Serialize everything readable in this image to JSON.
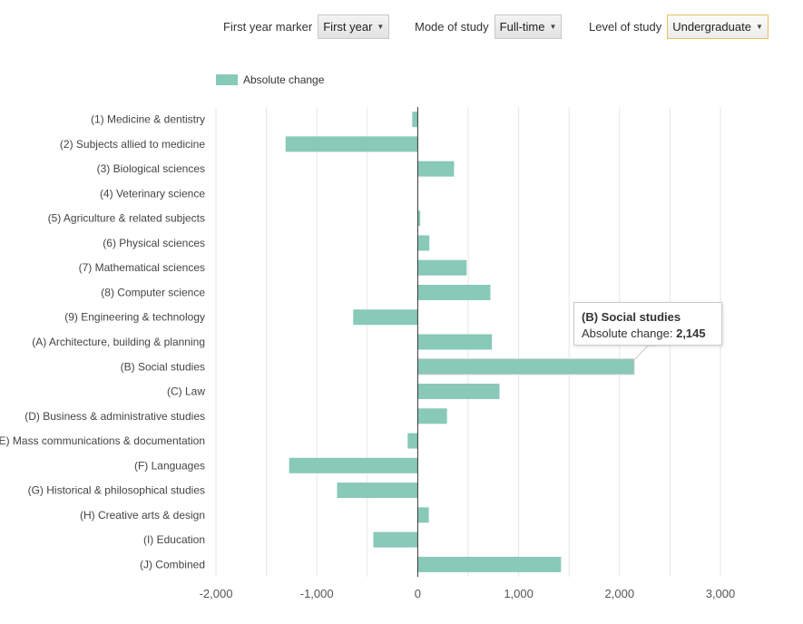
{
  "filters": [
    {
      "label": "First year marker",
      "value": "First year"
    },
    {
      "label": "Mode of study",
      "value": "Full-time"
    },
    {
      "label": "Level of study",
      "value": "Undergraduate"
    }
  ],
  "tooltip": {
    "title": "(B) Social studies",
    "label": "Absolute change:",
    "value": "2,145"
  },
  "chart_data": {
    "type": "bar",
    "orientation": "horizontal",
    "title": "",
    "xlabel": "",
    "ylabel": "",
    "xlim": [
      -2000,
      3000
    ],
    "xticks": [
      -2000,
      -1000,
      0,
      1000,
      2000,
      3000
    ],
    "xtick_labels": [
      "-2,000",
      "-1,000",
      "0",
      "1,000",
      "2,000",
      "3,000"
    ],
    "grid": true,
    "legend": {
      "position": "top-left",
      "entries": [
        "Absolute change"
      ]
    },
    "color": "#88c9b8",
    "categories": [
      "(1) Medicine & dentistry",
      "(2) Subjects allied to medicine",
      "(3) Biological sciences",
      "(4) Veterinary science",
      "(5) Agriculture & related subjects",
      "(6) Physical sciences",
      "(7) Mathematical sciences",
      "(8) Computer science",
      "(9) Engineering & technology",
      "(A) Architecture, building & planning",
      "(B) Social studies",
      "(C) Law",
      "(D) Business & administrative studies",
      "(E) Mass communications & documentation",
      "(F) Languages",
      "(G) Historical & philosophical studies",
      "(H) Creative arts & design",
      "(I) Education",
      "(J) Combined"
    ],
    "series": [
      {
        "name": "Absolute change",
        "values": [
          -55,
          -1310,
          360,
          0,
          25,
          115,
          485,
          720,
          -640,
          735,
          2145,
          810,
          290,
          -100,
          -1275,
          -800,
          110,
          -440,
          1420
        ]
      }
    ]
  }
}
